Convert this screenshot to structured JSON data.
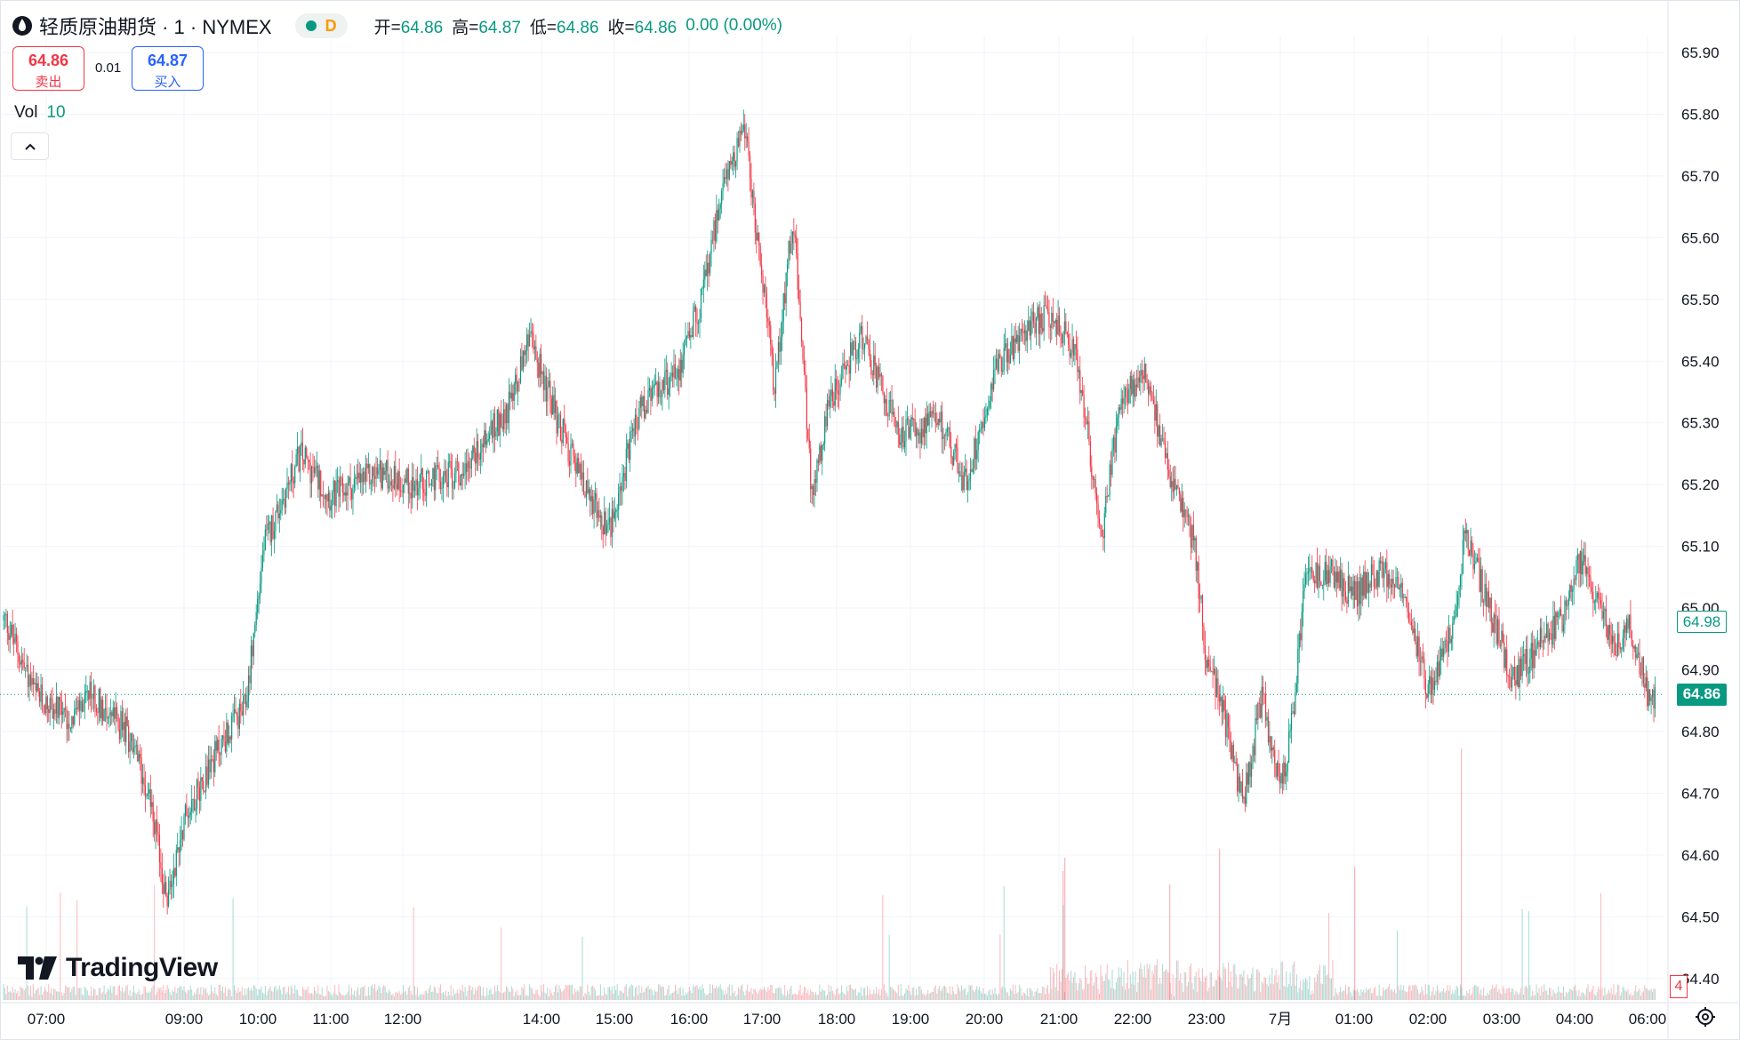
{
  "header": {
    "symbol_title": "轻质原油期货 · 1 · NYMEX",
    "status_letter": "D",
    "ohlc": [
      {
        "key": "开=",
        "value": "64.86"
      },
      {
        "key": "高=",
        "value": "64.87"
      },
      {
        "key": "低=",
        "value": "64.86"
      },
      {
        "key": "收=",
        "value": "64.86"
      }
    ],
    "change": "0.00 (0.00%)"
  },
  "trade": {
    "sell_price": "64.86",
    "sell_label": "卖出",
    "spread": "0.01",
    "buy_price": "64.87",
    "buy_label": "买入"
  },
  "volume_legend": {
    "label": "Vol",
    "value": "10"
  },
  "branding": {
    "logo_text": "TradingView"
  },
  "price_tags": {
    "last": "64.86",
    "mark": "64.98",
    "volume": "4"
  },
  "colors": {
    "up": "#089981",
    "down": "#f23645",
    "grid": "#f0f3fa",
    "text": "#131722"
  },
  "icons": {
    "symbol": "oil-drop-icon",
    "collapse": "chevron-up-icon",
    "settings": "gear-icon"
  },
  "chart_data": {
    "type": "candlestick",
    "interval": "1 minute",
    "y_axis": {
      "position": "right",
      "ticks": [
        "65.90",
        "65.80",
        "65.70",
        "65.60",
        "65.50",
        "65.40",
        "65.30",
        "65.20",
        "65.10",
        "65.00",
        "64.90",
        "64.80",
        "64.70",
        "64.60",
        "64.50",
        "64.40"
      ],
      "ylim": [
        64.35,
        65.92
      ]
    },
    "x_axis": {
      "ticks": [
        "07:00",
        "09:00",
        "10:00",
        "11:00",
        "12:00",
        "14:00",
        "15:00",
        "16:00",
        "17:00",
        "18:00",
        "19:00",
        "20:00",
        "21:00",
        "22:00",
        "23:00",
        "7月",
        "01:00",
        "02:00",
        "03:00",
        "04:00",
        "06:00"
      ]
    },
    "grid": true,
    "last_price": 64.86,
    "mark_price": 64.98,
    "approx_close_path": [
      [
        "06:25",
        64.98
      ],
      [
        "06:50",
        64.86
      ],
      [
        "07:20",
        64.82
      ],
      [
        "07:40",
        64.86
      ],
      [
        "08:10",
        64.8
      ],
      [
        "08:30",
        64.7
      ],
      [
        "08:45",
        64.52
      ],
      [
        "09:00",
        64.66
      ],
      [
        "09:30",
        64.78
      ],
      [
        "09:50",
        64.84
      ],
      [
        "10:05",
        65.1
      ],
      [
        "10:35",
        65.25
      ],
      [
        "11:00",
        65.18
      ],
      [
        "11:40",
        65.22
      ],
      [
        "12:10",
        65.2
      ],
      [
        "12:50",
        65.22
      ],
      [
        "13:30",
        65.32
      ],
      [
        "13:50",
        65.44
      ],
      [
        "14:10",
        65.32
      ],
      [
        "14:30",
        65.22
      ],
      [
        "14:55",
        65.12
      ],
      [
        "15:20",
        65.32
      ],
      [
        "15:50",
        65.38
      ],
      [
        "16:10",
        65.5
      ],
      [
        "16:30",
        65.7
      ],
      [
        "16:45",
        65.78
      ],
      [
        "17:00",
        65.54
      ],
      [
        "17:10",
        65.36
      ],
      [
        "17:25",
        65.64
      ],
      [
        "17:40",
        65.18
      ],
      [
        "17:55",
        65.34
      ],
      [
        "18:20",
        65.44
      ],
      [
        "18:50",
        65.28
      ],
      [
        "19:25",
        65.3
      ],
      [
        "19:45",
        65.2
      ],
      [
        "20:10",
        65.4
      ],
      [
        "20:40",
        65.46
      ],
      [
        "20:55",
        65.48
      ],
      [
        "21:15",
        65.4
      ],
      [
        "21:35",
        65.12
      ],
      [
        "21:50",
        65.34
      ],
      [
        "22:10",
        65.38
      ],
      [
        "22:30",
        65.22
      ],
      [
        "22:50",
        65.1
      ],
      [
        "23:00",
        64.92
      ],
      [
        "23:15",
        64.82
      ],
      [
        "23:30",
        64.68
      ],
      [
        "23:45",
        64.86
      ],
      [
        "00:00",
        64.7
      ],
      [
        "00:10",
        64.82
      ],
      [
        "00:20",
        65.04
      ],
      [
        "00:40",
        65.06
      ],
      [
        "01:00",
        65.02
      ],
      [
        "01:20",
        65.06
      ],
      [
        "01:40",
        65.04
      ],
      [
        "02:00",
        64.86
      ],
      [
        "02:20",
        64.96
      ],
      [
        "02:30",
        65.12
      ],
      [
        "02:50",
        65.0
      ],
      [
        "03:10",
        64.88
      ],
      [
        "03:30",
        64.94
      ],
      [
        "03:50",
        64.98
      ],
      [
        "04:10",
        65.08
      ],
      [
        "04:30",
        65.02
      ],
      [
        "04:50",
        64.98
      ],
      [
        "05:10",
        64.94
      ],
      [
        "05:30",
        64.98
      ],
      [
        "06:00",
        64.86
      ]
    ]
  }
}
